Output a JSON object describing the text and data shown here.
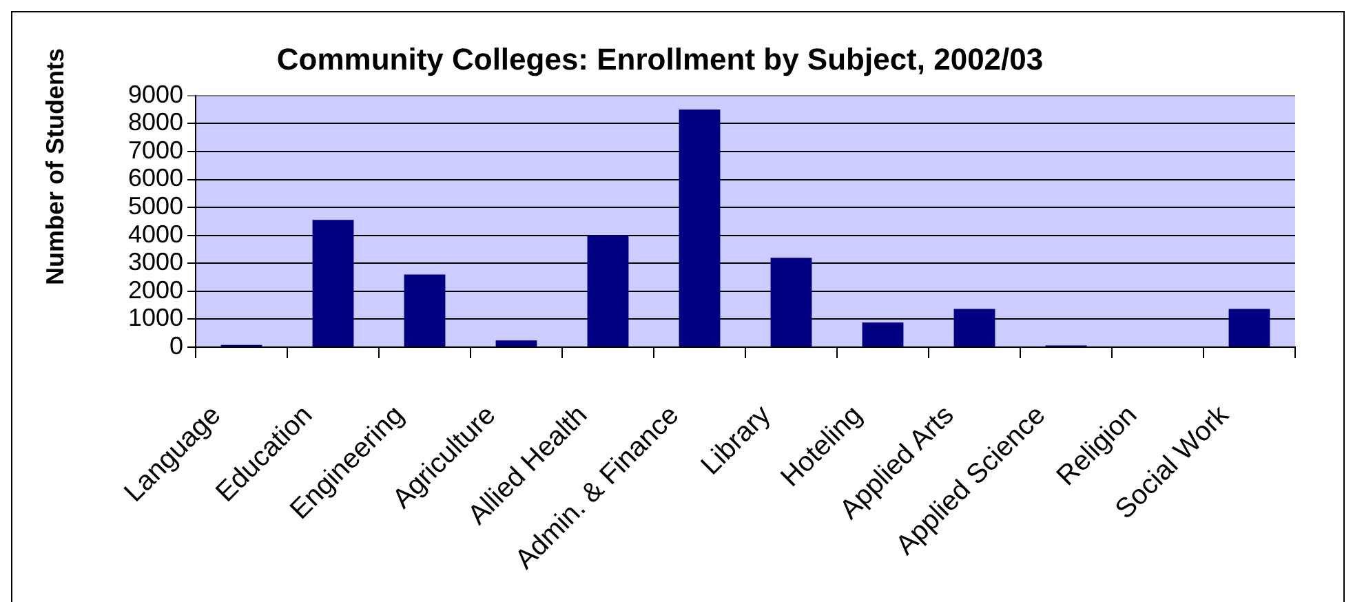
{
  "chart_data": {
    "type": "bar",
    "title": "Community Colleges: Enrollment by Subject, 2002/03",
    "ylabel": "Number of Students",
    "categories": [
      "Language",
      "Education",
      "Engineering",
      "Agriculture",
      "Allied Health",
      "Admin. & Finance",
      "Library",
      "Hoteling",
      "Applied Arts",
      "Applied Science",
      "Religion",
      "Social Work"
    ],
    "values": [
      80,
      4550,
      2600,
      240,
      4000,
      8500,
      3200,
      880,
      1370,
      60,
      0,
      1370
    ],
    "color": "#000080",
    "ylim": [
      0,
      9000
    ],
    "yticks": [
      0,
      1000,
      2000,
      3000,
      4000,
      5000,
      6000,
      7000,
      8000,
      9000
    ],
    "grid": "y"
  }
}
